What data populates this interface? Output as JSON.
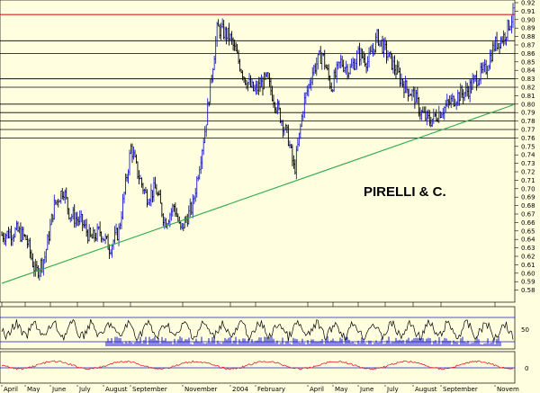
{
  "chart_data": {
    "type": "ohlc",
    "title": "PIRELLI & C.",
    "ylim": [
      0.57,
      0.92
    ],
    "y_ticks": [
      0.58,
      0.59,
      0.6,
      0.61,
      0.62,
      0.63,
      0.64,
      0.65,
      0.66,
      0.67,
      0.68,
      0.69,
      0.7,
      0.71,
      0.72,
      0.73,
      0.74,
      0.75,
      0.76,
      0.77,
      0.78,
      0.79,
      0.8,
      0.81,
      0.82,
      0.83,
      0.84,
      0.85,
      0.86,
      0.87,
      0.88,
      0.89,
      0.9,
      0.91,
      0.92
    ],
    "y_tick_labels": [
      "0.58",
      "0.59",
      "0.60",
      "0.61",
      "0.62",
      "0.63",
      "0.64",
      "0.65",
      "0.66",
      "0.67",
      "0.68",
      "0.69",
      "0.70",
      "0.71",
      "0.72",
      "0.73",
      "0.74",
      "0.75",
      "0.76",
      "0.77",
      "0.78",
      "0.79",
      "0.80",
      "0.81",
      "0.82",
      "0.83",
      "0.84",
      "0.85",
      "0.86",
      "0.87",
      "0.88",
      "0.89",
      "0.90",
      "0.91",
      "0.92"
    ],
    "x_labels": [
      "April",
      "May",
      "June",
      "July",
      "August",
      "September",
      "November",
      "2004",
      "February",
      "April",
      "May",
      "June",
      "July",
      "August",
      "September",
      "Novem"
    ],
    "horizontal_levels": [
      {
        "value": 0.906,
        "color": "#d62020"
      },
      {
        "value": 0.875,
        "color": "#000000"
      },
      {
        "value": 0.86,
        "color": "#000000"
      },
      {
        "value": 0.83,
        "color": "#1515d0"
      },
      {
        "value": 0.82,
        "color": "#000000"
      },
      {
        "value": 0.8,
        "color": "#000000"
      },
      {
        "value": 0.79,
        "color": "#000000"
      },
      {
        "value": 0.78,
        "color": "#000000"
      },
      {
        "value": 0.77,
        "color": "#000000"
      },
      {
        "value": 0.76,
        "color": "#000000"
      }
    ],
    "trendline": {
      "start": [
        0,
        0.588
      ],
      "end": [
        166,
        0.799
      ],
      "color": "#2faa4a"
    },
    "price_path": [
      [
        0,
        0.645
      ],
      [
        5,
        0.65
      ],
      [
        8,
        0.64
      ],
      [
        11,
        0.6
      ],
      [
        14,
        0.62
      ],
      [
        17,
        0.68
      ],
      [
        20,
        0.7
      ],
      [
        22,
        0.67
      ],
      [
        26,
        0.66
      ],
      [
        29,
        0.64
      ],
      [
        32,
        0.65
      ],
      [
        35,
        0.63
      ],
      [
        38,
        0.65
      ],
      [
        42,
        0.75
      ],
      [
        44,
        0.72
      ],
      [
        47,
        0.69
      ],
      [
        50,
        0.7
      ],
      [
        53,
        0.66
      ],
      [
        56,
        0.68
      ],
      [
        58,
        0.65
      ],
      [
        62,
        0.68
      ],
      [
        66,
        0.77
      ],
      [
        70,
        0.89
      ],
      [
        74,
        0.88
      ],
      [
        79,
        0.83
      ],
      [
        82,
        0.815
      ],
      [
        86,
        0.83
      ],
      [
        90,
        0.79
      ],
      [
        93,
        0.76
      ],
      [
        95,
        0.72
      ],
      [
        98,
        0.8
      ],
      [
        101,
        0.84
      ],
      [
        104,
        0.86
      ],
      [
        107,
        0.82
      ],
      [
        110,
        0.85
      ],
      [
        113,
        0.84
      ],
      [
        116,
        0.86
      ],
      [
        119,
        0.85
      ],
      [
        122,
        0.88
      ],
      [
        125,
        0.86
      ],
      [
        128,
        0.84
      ],
      [
        131,
        0.82
      ],
      [
        134,
        0.81
      ],
      [
        136,
        0.79
      ],
      [
        139,
        0.78
      ],
      [
        142,
        0.79
      ],
      [
        145,
        0.8
      ],
      [
        148,
        0.81
      ],
      [
        151,
        0.815
      ],
      [
        154,
        0.83
      ],
      [
        157,
        0.84
      ],
      [
        160,
        0.87
      ],
      [
        163,
        0.88
      ],
      [
        166,
        0.905
      ]
    ],
    "oscillators": [
      {
        "name": "",
        "y_tick_labels": [
          "50"
        ],
        "color": "#000000",
        "level_color": "#1515d0"
      },
      {
        "name": "",
        "y_tick_labels": [
          "0"
        ],
        "color": "#e02020",
        "level_color": "#1515d0"
      }
    ]
  }
}
